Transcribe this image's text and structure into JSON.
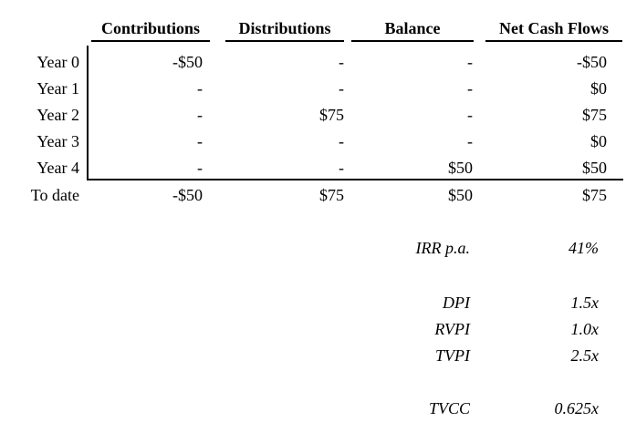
{
  "colors": {
    "background": "#ffffff",
    "text": "#000000",
    "rule": "#000000"
  },
  "table": {
    "columns": [
      "Contributions",
      "Distributions",
      "Balance",
      "Net Cash Flows"
    ],
    "rows": [
      {
        "label": "Year 0",
        "values": [
          "-$50",
          "-",
          "-",
          "-$50"
        ]
      },
      {
        "label": "Year 1",
        "values": [
          "-",
          "-",
          "-",
          "$0"
        ]
      },
      {
        "label": "Year 2",
        "values": [
          "-",
          "$75",
          "-",
          "$75"
        ]
      },
      {
        "label": "Year 3",
        "values": [
          "-",
          "-",
          "-",
          "$0"
        ]
      },
      {
        "label": "Year 4",
        "values": [
          "-",
          "-",
          "$50",
          "$50"
        ]
      }
    ],
    "total_row": {
      "label": "To date",
      "values": [
        "-$50",
        "$75",
        "$50",
        "$75"
      ]
    }
  },
  "metrics": [
    {
      "label": "IRR p.a.",
      "value": "41%"
    },
    {
      "label": "DPI",
      "value": "1.5x"
    },
    {
      "label": "RVPI",
      "value": "1.0x"
    },
    {
      "label": "TVPI",
      "value": "2.5x"
    },
    {
      "label": "TVCC",
      "value": "0.625x"
    }
  ]
}
